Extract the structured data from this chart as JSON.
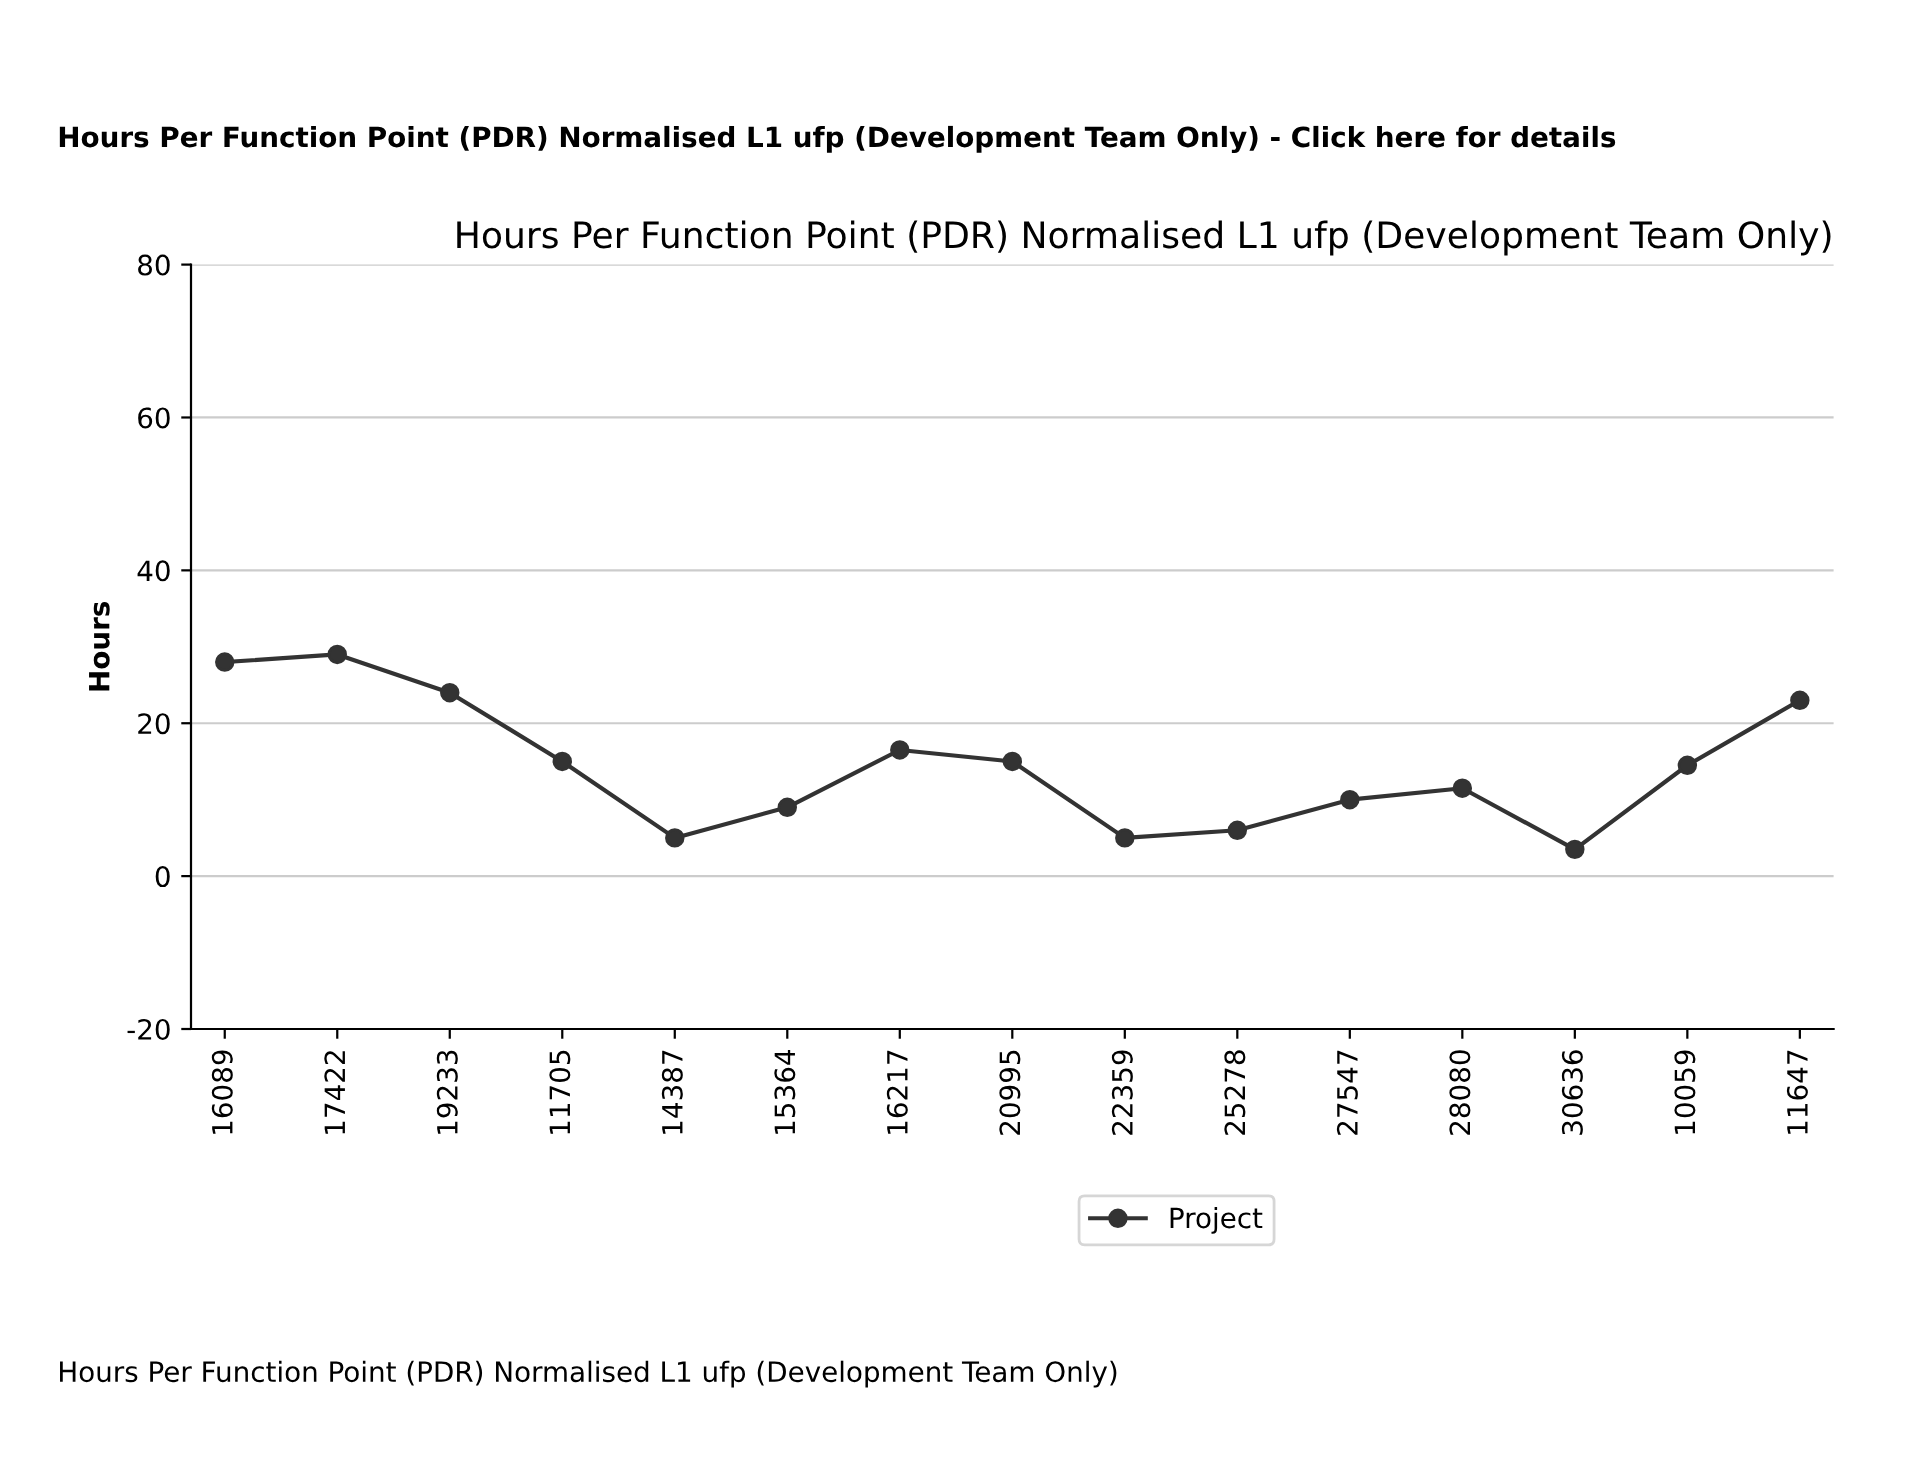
{
  "chart_data": {
    "type": "line",
    "title": "Hours Per Function Point (PDR) Normalised L1 ufp (Development Team Only)",
    "ylabel": "Hours",
    "categories": [
      "16089",
      "17422",
      "19233",
      "11705",
      "14387",
      "15364",
      "16217",
      "20995",
      "22359",
      "25278",
      "27547",
      "28080",
      "30636",
      "10059",
      "11647"
    ],
    "series": [
      {
        "name": "Project",
        "color": "#333333",
        "values": [
          28,
          29,
          24,
          15,
          5,
          9,
          16.5,
          15,
          5,
          6,
          10,
          11.5,
          3.5,
          14.5,
          23
        ]
      }
    ],
    "ylim": [
      -20,
      80
    ],
    "yticks": [
      -20,
      0,
      20,
      40,
      60,
      80
    ],
    "grid": "y",
    "legend": "bottom",
    "marker": "circle",
    "line_style": "solid",
    "annotations": [
      "Hours Per Function Point (PDR) Normalised L1 ufp (Development Team Only) - Click here for details",
      "Hours Per Function Point (PDR) Normalised L1 ufp (Development Team Only)"
    ]
  }
}
